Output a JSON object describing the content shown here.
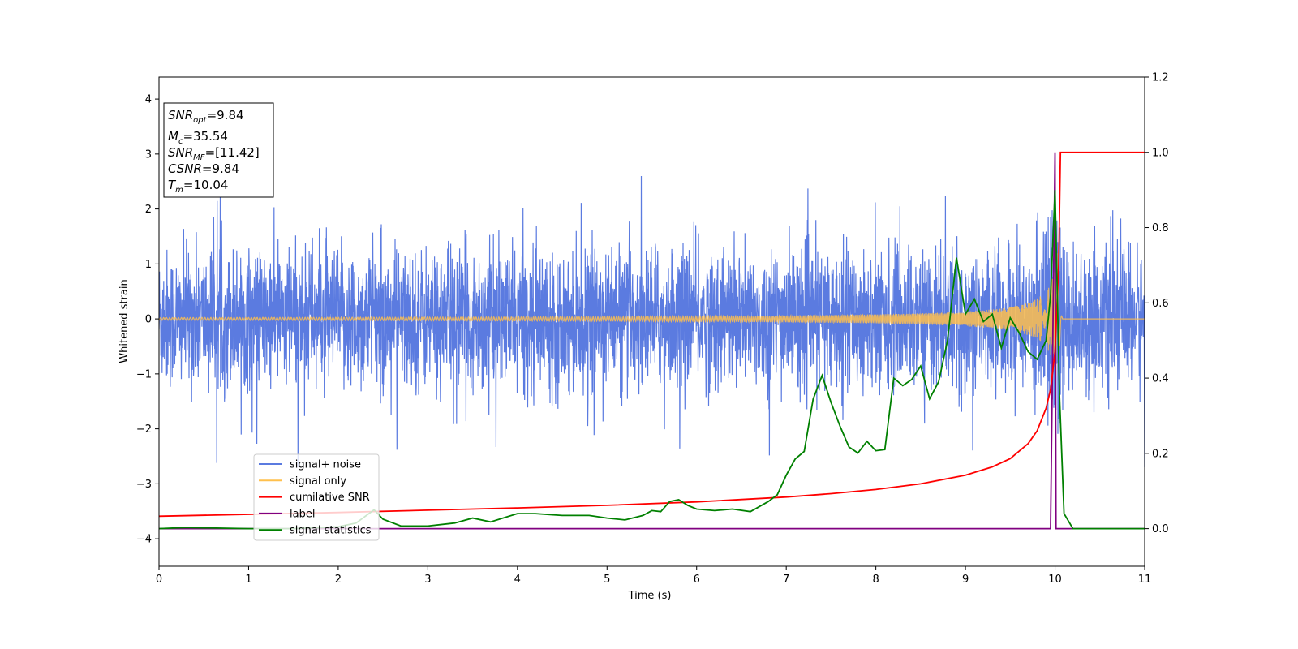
{
  "chart_data": {
    "type": "line",
    "xlabel": "Time (s)",
    "ylabel": "Whitened strain",
    "xlim": [
      0,
      11
    ],
    "ylim_left": [
      -4.5,
      4.4
    ],
    "ylim_right": [
      -0.1,
      1.2
    ],
    "x_ticks": [
      "0",
      "1",
      "2",
      "3",
      "4",
      "5",
      "6",
      "7",
      "8",
      "9",
      "10",
      "11"
    ],
    "y_ticks_left": [
      "−4",
      "−3",
      "−2",
      "−1",
      "0",
      "1",
      "2",
      "3",
      "4"
    ],
    "y_ticks_right": [
      "0.0",
      "0.2",
      "0.4",
      "0.6",
      "0.8",
      "1.0",
      "1.2"
    ],
    "legend_position": "lower-left",
    "legend": [
      {
        "label": "signal+ noise",
        "color": "#5b7be0"
      },
      {
        "label": "signal only",
        "color": "#ffc04d"
      },
      {
        "label": "cumilative SNR",
        "color": "#ff0000"
      },
      {
        "label": "label",
        "color": "#800080"
      },
      {
        "label": "signal statistics",
        "color": "#008000"
      }
    ],
    "annotation": {
      "position": "top-left",
      "lines": [
        {
          "var": "SNR",
          "sub": "opt",
          "value": "=9.84"
        },
        {
          "var": "M",
          "sub": "c",
          "value": "=35.54"
        },
        {
          "var": "SNR",
          "sub": "MF",
          "value": "=[11.42]"
        },
        {
          "var": "CSNR",
          "sub": "",
          "value": "=9.84"
        },
        {
          "var": "T",
          "sub": "m",
          "value": "=10.04"
        }
      ]
    },
    "series": [
      {
        "name": "signal+ noise",
        "axis": "left",
        "color": "#5b7be0",
        "style": "noise",
        "x_range": [
          0,
          11
        ],
        "amplitude_envelope": 1.3,
        "max_spike": 2.6,
        "min_spike": -2.7
      },
      {
        "name": "signal only",
        "axis": "left",
        "color": "#ffc04d",
        "style": "chirp",
        "x_range": [
          0,
          10.04
        ],
        "merger_time": 10.04,
        "peak_amplitude": 1.6
      },
      {
        "name": "cumilative SNR",
        "axis": "right",
        "color": "#ff0000",
        "x": [
          0,
          1,
          2,
          3,
          4,
          5,
          6,
          7,
          7.5,
          8,
          8.5,
          9,
          9.3,
          9.5,
          9.7,
          9.8,
          9.9,
          9.95,
          10.0,
          10.04,
          10.06,
          11
        ],
        "y": [
          0.033,
          0.038,
          0.043,
          0.049,
          0.055,
          0.062,
          0.071,
          0.084,
          0.093,
          0.104,
          0.119,
          0.142,
          0.164,
          0.186,
          0.226,
          0.26,
          0.32,
          0.37,
          0.47,
          0.7,
          1.0,
          1.0
        ]
      },
      {
        "name": "label",
        "axis": "right",
        "color": "#800080",
        "x": [
          0,
          9.95,
          10.0,
          10.01,
          11
        ],
        "y": [
          0.0,
          0.0,
          1.0,
          0.0,
          0.0
        ]
      },
      {
        "name": "signal statistics",
        "axis": "right",
        "color": "#008000",
        "x": [
          0,
          0.3,
          1.0,
          1.5,
          2.0,
          2.2,
          2.4,
          2.5,
          2.7,
          3.0,
          3.3,
          3.5,
          3.7,
          4.0,
          4.2,
          4.5,
          4.8,
          5.0,
          5.2,
          5.4,
          5.5,
          5.6,
          5.7,
          5.8,
          5.9,
          6.0,
          6.2,
          6.4,
          6.6,
          6.8,
          6.9,
          7.0,
          7.1,
          7.2,
          7.3,
          7.4,
          7.5,
          7.6,
          7.7,
          7.8,
          7.9,
          8.0,
          8.1,
          8.2,
          8.3,
          8.4,
          8.5,
          8.6,
          8.7,
          8.8,
          8.9,
          9.0,
          9.1,
          9.2,
          9.3,
          9.4,
          9.5,
          9.6,
          9.7,
          9.8,
          9.9,
          9.95,
          10.0,
          10.05,
          10.1,
          10.2,
          10.5,
          11.0
        ],
        "y": [
          0.0,
          0.003,
          0.0,
          0.0,
          0.005,
          0.015,
          0.05,
          0.025,
          0.007,
          0.007,
          0.015,
          0.028,
          0.018,
          0.04,
          0.04,
          0.035,
          0.035,
          0.028,
          0.023,
          0.035,
          0.048,
          0.045,
          0.072,
          0.077,
          0.062,
          0.052,
          0.048,
          0.052,
          0.045,
          0.072,
          0.09,
          0.142,
          0.185,
          0.205,
          0.344,
          0.407,
          0.335,
          0.272,
          0.217,
          0.201,
          0.232,
          0.207,
          0.21,
          0.4,
          0.38,
          0.396,
          0.432,
          0.345,
          0.39,
          0.5,
          0.72,
          0.57,
          0.61,
          0.55,
          0.57,
          0.48,
          0.56,
          0.52,
          0.47,
          0.45,
          0.5,
          0.62,
          0.9,
          0.35,
          0.04,
          0.0,
          0.0,
          0.0
        ]
      }
    ]
  }
}
